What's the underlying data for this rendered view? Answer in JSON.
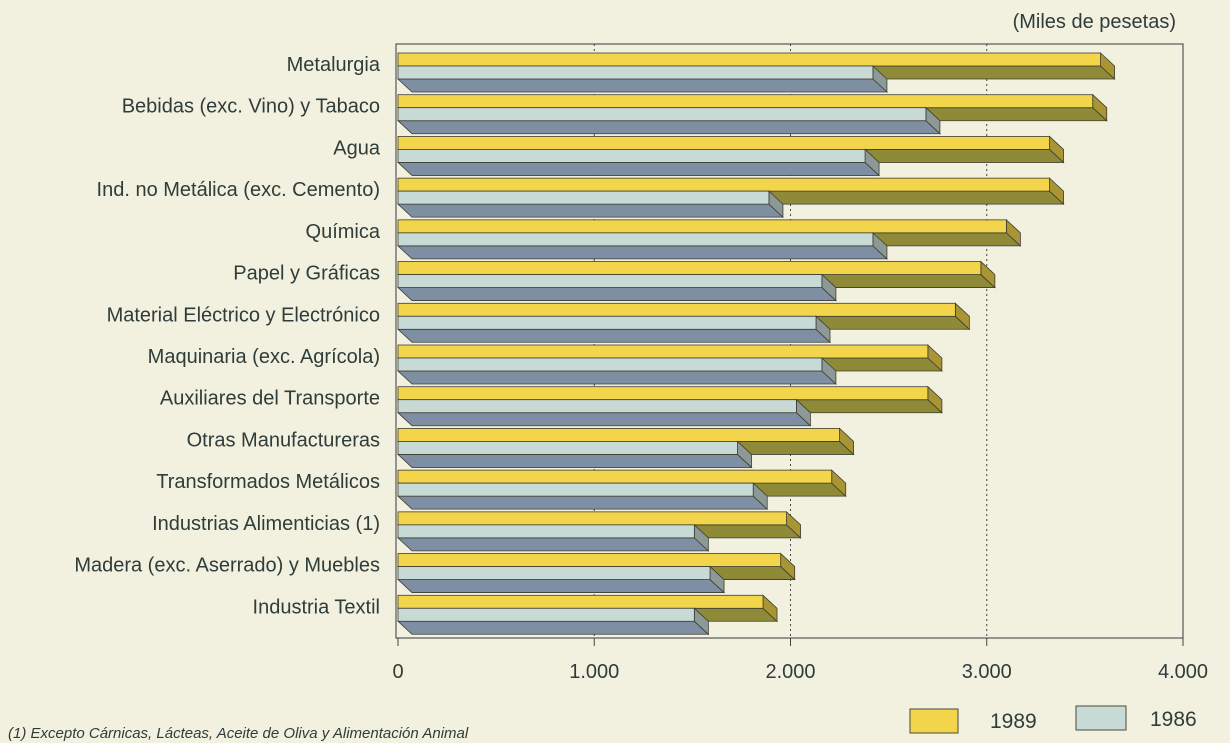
{
  "chart_data": {
    "type": "bar",
    "orientation": "horizontal",
    "unit_label": "(Miles de pesetas)",
    "categories": [
      "Metalurgia",
      "Bebidas (exc. Vino) y Tabaco",
      "Agua",
      "Ind. no Metálica (exc. Cemento)",
      "Química",
      "Papel y Gráficas",
      "Material Eléctrico y Electrónico",
      "Maquinaria (exc. Agrícola)",
      "Auxiliares del Transporte",
      "Otras Manufactureras",
      "Transformados Metálicos",
      "Industrias Alimenticias (1)",
      "Madera (exc. Aserrado) y Muebles",
      "Industria Textil"
    ],
    "series": [
      {
        "name": "1989",
        "color": "#f2d54a",
        "values": [
          3580,
          3540,
          3320,
          3320,
          3100,
          2970,
          2840,
          2700,
          2700,
          2250,
          2210,
          1980,
          1950,
          1860
        ]
      },
      {
        "name": "1986",
        "color": "#c8dad6",
        "values": [
          2420,
          2690,
          2380,
          1890,
          2420,
          2160,
          2130,
          2160,
          2030,
          1730,
          1810,
          1510,
          1590,
          1510
        ]
      }
    ],
    "xlim": [
      0,
      4000
    ],
    "x_ticks": [
      "0",
      "1.000",
      "2.000",
      "3.000",
      "4.000"
    ],
    "grid": "vertical dotted",
    "legend": "bottom-right",
    "footnote": "(1) Excepto Cárnicas, Lácteas, Aceite de Oliva y Alimentación Animal"
  }
}
